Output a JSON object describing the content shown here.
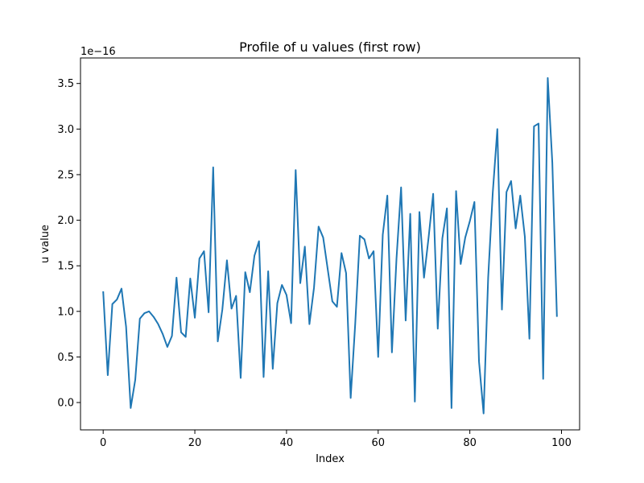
{
  "chart_data": {
    "type": "line",
    "title": "Profile of u values (first row)",
    "xlabel": "Index",
    "ylabel": "u value",
    "y_offset_text": "1e−16",
    "xlim": [
      -4.95,
      103.95
    ],
    "ylim": [
      -0.3,
      3.78
    ],
    "x_ticks": [
      0,
      20,
      40,
      60,
      80,
      100
    ],
    "x_tick_labels": [
      "0",
      "20",
      "40",
      "60",
      "80",
      "100"
    ],
    "y_ticks": [
      0.0,
      0.5,
      1.0,
      1.5,
      2.0,
      2.5,
      3.0,
      3.5
    ],
    "y_tick_labels": [
      "0.0",
      "0.5",
      "1.0",
      "1.5",
      "2.0",
      "2.5",
      "3.0",
      "3.5"
    ],
    "grid": false,
    "legend": "none",
    "line_color": "#1f77b4",
    "series": [
      {
        "x": [
          0,
          1,
          2,
          3,
          4,
          5,
          6,
          7,
          8,
          9,
          10,
          11,
          12,
          13,
          14,
          15,
          16,
          17,
          18,
          19,
          20,
          21,
          22,
          23,
          24,
          25,
          26,
          27,
          28,
          29,
          30,
          31,
          32,
          33,
          34,
          35,
          36,
          37,
          38,
          39,
          40,
          41,
          42,
          43,
          44,
          45,
          46,
          47,
          48,
          49,
          50,
          51,
          52,
          53,
          54,
          55,
          56,
          57,
          58,
          59,
          60,
          61,
          62,
          63,
          64,
          65,
          66,
          67,
          68,
          69,
          70,
          71,
          72,
          73,
          74,
          75,
          76,
          77,
          78,
          79,
          80,
          81,
          82,
          83,
          84,
          85,
          86,
          87,
          88,
          89,
          90,
          91,
          92,
          93,
          94,
          95,
          96,
          97,
          98,
          99
        ],
        "values": [
          1.22,
          0.3,
          1.08,
          1.13,
          1.25,
          0.83,
          -0.06,
          0.25,
          0.92,
          0.98,
          1.0,
          0.94,
          0.86,
          0.75,
          0.61,
          0.73,
          1.37,
          0.77,
          0.72,
          1.36,
          0.93,
          1.58,
          1.66,
          0.99,
          2.58,
          0.67,
          1.02,
          1.56,
          1.03,
          1.17,
          0.27,
          1.43,
          1.21,
          1.61,
          1.77,
          0.28,
          1.44,
          0.37,
          1.09,
          1.29,
          1.18,
          0.87,
          2.55,
          1.31,
          1.71,
          0.86,
          1.26,
          1.93,
          1.81,
          1.46,
          1.11,
          1.05,
          1.64,
          1.42,
          0.05,
          0.87,
          1.83,
          1.79,
          1.58,
          1.66,
          0.5,
          1.84,
          2.27,
          0.55,
          1.58,
          2.36,
          0.9,
          2.07,
          0.01,
          2.09,
          1.37,
          1.81,
          2.29,
          0.81,
          1.8,
          2.13,
          -0.06,
          2.32,
          1.52,
          1.81,
          1.99,
          2.2,
          0.45,
          -0.12,
          1.37,
          2.3,
          3.0,
          1.02,
          2.31,
          2.43,
          1.91,
          2.27,
          1.82,
          0.7,
          3.03,
          3.06,
          0.26,
          3.56,
          2.63,
          0.94
        ]
      }
    ]
  }
}
